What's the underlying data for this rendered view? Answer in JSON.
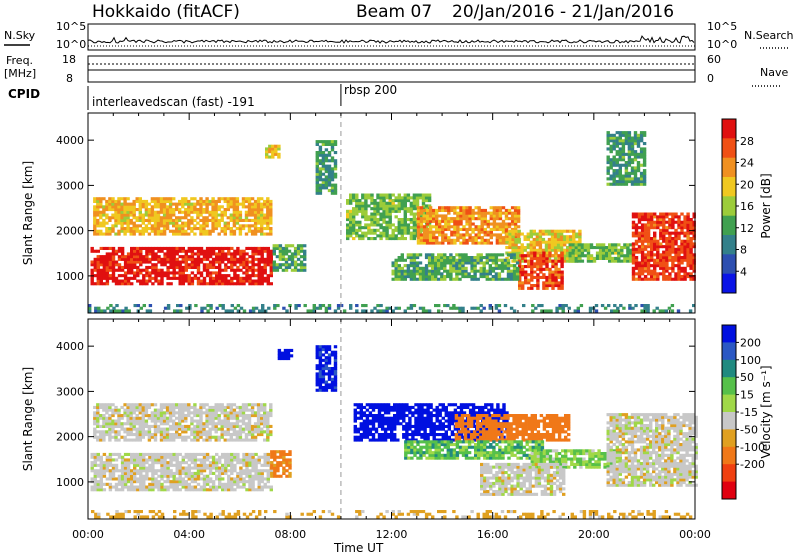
{
  "header": {
    "station": "Hokkaido (fitACF)",
    "beam": "Beam 07",
    "date_range": "20/Jan/2016 - 21/Jan/2016"
  },
  "noise_panel": {
    "left_label": "N.Sky",
    "right_label": "N.Search",
    "left_ticks": [
      "10^5",
      "10^0"
    ],
    "right_ticks": [
      "10^5",
      "10^0"
    ]
  },
  "freq_panel": {
    "left_label_line1": "Freq.",
    "left_label_line2": "[MHz]",
    "right_label": "Nave",
    "left_ticks": [
      "18",
      "8"
    ],
    "right_ticks": [
      "60",
      "0"
    ]
  },
  "cpid_panel": {
    "label": "CPID",
    "segments": [
      {
        "name": "interleavedscan (fast) -191",
        "start_hour": 0
      },
      {
        "name": "rbsp 200",
        "start_hour": 10.0
      }
    ]
  },
  "x_axis": {
    "label": "Time UT",
    "tick_labels": [
      "00:00",
      "04:00",
      "08:00",
      "12:00",
      "16:00",
      "20:00",
      "00:00"
    ],
    "range_hours": [
      0,
      24
    ]
  },
  "chart_data": [
    {
      "type": "heatmap",
      "name": "power",
      "ylabel": "Slant Range [km]",
      "yticks": [
        1000,
        2000,
        3000,
        4000
      ],
      "ylim": [
        180,
        4600
      ],
      "xlim": [
        0,
        24
      ],
      "colorbar": {
        "label": "Power [dB]",
        "ticks": [
          4,
          8,
          12,
          16,
          20,
          24,
          28
        ],
        "colors": [
          "#0a14e6",
          "#2d4fb0",
          "#33808a",
          "#40a050",
          "#9ccc3a",
          "#f0c820",
          "#f09020",
          "#f05015",
          "#e01010"
        ],
        "range": [
          0,
          32
        ]
      },
      "regions": [
        {
          "t": [
            0.1,
            7.3
          ],
          "r": [
            800,
            1600
          ],
          "level": 0.95
        },
        {
          "t": [
            0.2,
            7.2
          ],
          "r": [
            1900,
            2700
          ],
          "level": 0.65
        },
        {
          "t": [
            7.0,
            7.6
          ],
          "r": [
            3600,
            3900
          ],
          "level": 0.6
        },
        {
          "t": [
            7.3,
            8.5
          ],
          "r": [
            1100,
            1700
          ],
          "level": 0.4
        },
        {
          "t": [
            9.0,
            9.8
          ],
          "r": [
            2800,
            4000
          ],
          "level": 0.35
        },
        {
          "t": [
            10.2,
            13.5
          ],
          "r": [
            1800,
            2800
          ],
          "level": 0.45
        },
        {
          "t": [
            13.0,
            17.0
          ],
          "r": [
            1700,
            2500
          ],
          "level": 0.72
        },
        {
          "t": [
            16.5,
            19.5
          ],
          "r": [
            1300,
            2000
          ],
          "level": 0.6
        },
        {
          "t": [
            17.0,
            18.8
          ],
          "r": [
            700,
            1500
          ],
          "level": 0.85
        },
        {
          "t": [
            19.0,
            21.5
          ],
          "r": [
            1300,
            1700
          ],
          "level": 0.45
        },
        {
          "t": [
            21.5,
            24.0
          ],
          "r": [
            900,
            2400
          ],
          "level": 0.88
        },
        {
          "t": [
            20.5,
            22.0
          ],
          "r": [
            3000,
            4200
          ],
          "level": 0.35
        },
        {
          "t": [
            12.0,
            17.0
          ],
          "r": [
            900,
            1500
          ],
          "level": 0.4
        },
        {
          "t": [
            0.0,
            24.0
          ],
          "r": [
            200,
            350
          ],
          "level": 0.3
        }
      ]
    },
    {
      "type": "heatmap",
      "name": "velocity",
      "ylabel": "Slant Range [km]",
      "yticks": [
        1000,
        2000,
        3000,
        4000
      ],
      "ylim": [
        180,
        4600
      ],
      "xlim": [
        0,
        24
      ],
      "colorbar": {
        "label": "Velocity [m s⁻¹]",
        "ticks": [
          200,
          100,
          50,
          15,
          -15,
          -50,
          -100,
          -200
        ],
        "colors": [
          "#0010e0",
          "#2b58c4",
          "#208a80",
          "#56c04a",
          "#a0d848",
          "#c8c8c8",
          "#e0a020",
          "#f07818",
          "#f04010",
          "#e00010"
        ],
        "range": [
          -250,
          250
        ]
      },
      "regions": [
        {
          "t": [
            0.1,
            7.3
          ],
          "r": [
            800,
            1600
          ],
          "value": 0
        },
        {
          "t": [
            0.2,
            7.2
          ],
          "r": [
            1900,
            2700
          ],
          "value": 0
        },
        {
          "t": [
            7.2,
            8.0
          ],
          "r": [
            1100,
            1700
          ],
          "value": -60
        },
        {
          "t": [
            7.5,
            8.0
          ],
          "r": [
            3700,
            3900
          ],
          "value": 180
        },
        {
          "t": [
            9.0,
            9.8
          ],
          "r": [
            3000,
            4000
          ],
          "value": 160
        },
        {
          "t": [
            10.5,
            16.5
          ],
          "r": [
            1900,
            2700
          ],
          "value": 230
        },
        {
          "t": [
            14.5,
            19.0
          ],
          "r": [
            1900,
            2500
          ],
          "value": -70
        },
        {
          "t": [
            12.5,
            18.0
          ],
          "r": [
            1500,
            1900
          ],
          "value": 40
        },
        {
          "t": [
            17.5,
            21.0
          ],
          "r": [
            1300,
            1700
          ],
          "value": 30
        },
        {
          "t": [
            15.5,
            18.8
          ],
          "r": [
            700,
            1400
          ],
          "value": 0
        },
        {
          "t": [
            20.5,
            24.0
          ],
          "r": [
            900,
            2500
          ],
          "value": 0
        },
        {
          "t": [
            0.0,
            24.0
          ],
          "r": [
            200,
            350
          ],
          "value": -30
        }
      ]
    }
  ]
}
